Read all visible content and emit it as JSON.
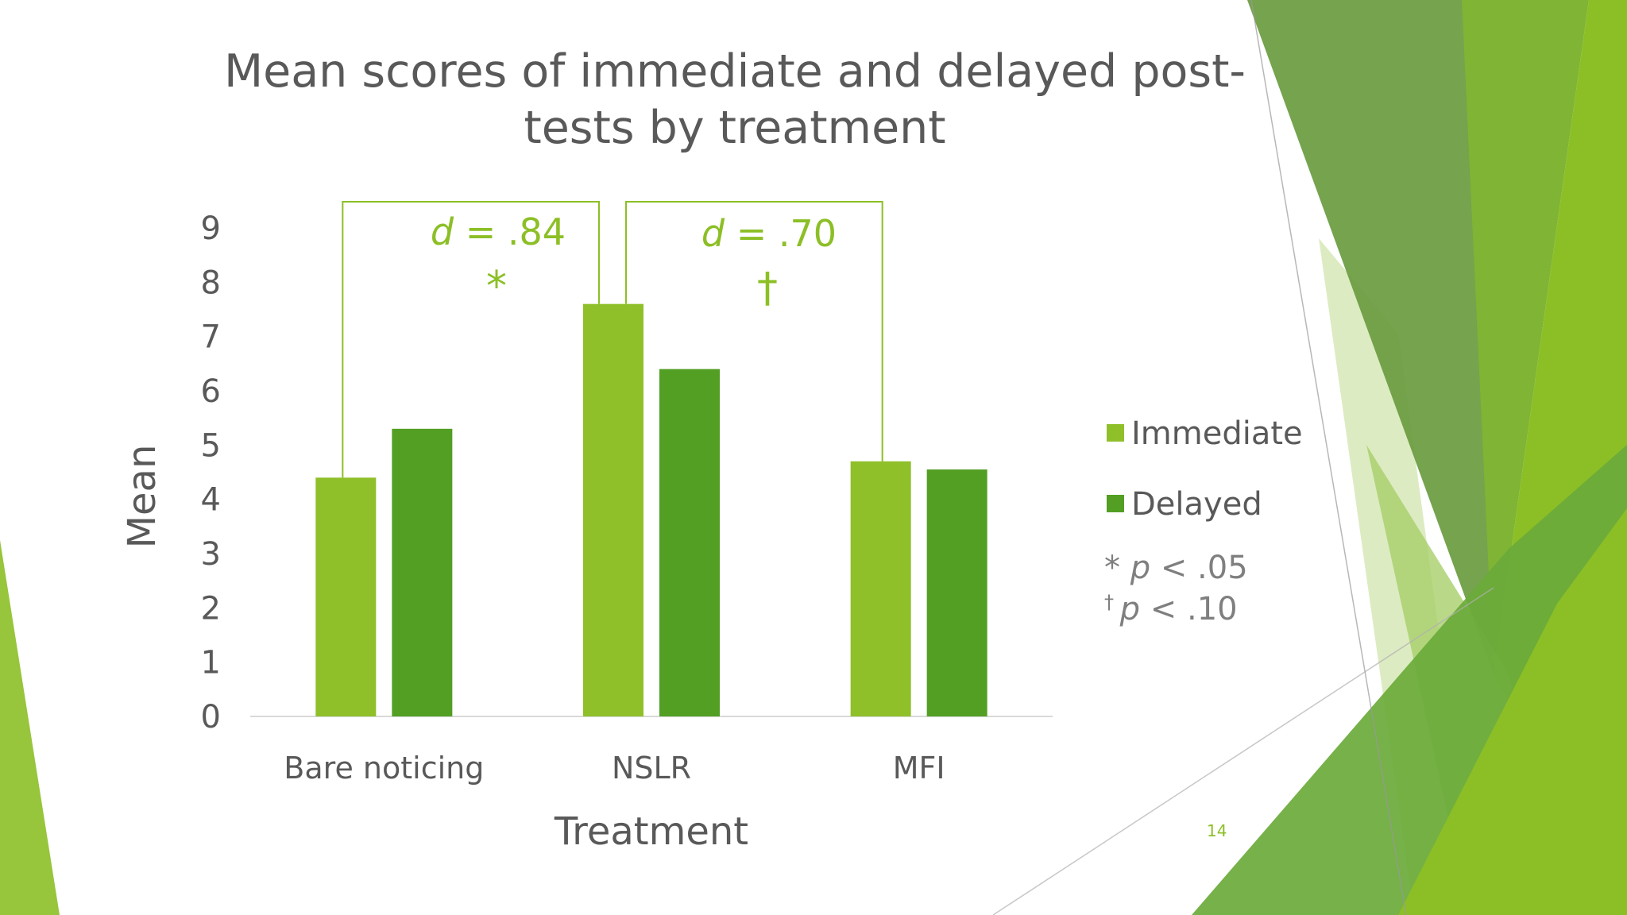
{
  "slide": {
    "title_line1": "Mean scores of immediate and delayed post-",
    "title_line2": "tests by treatment",
    "page_number": "14"
  },
  "colors": {
    "immediate": "#8fc02a",
    "delayed": "#529f24",
    "annotation": "#8cbf26",
    "text": "#595959",
    "note": "#7f7f7f"
  },
  "chart_data": {
    "type": "bar",
    "categories": [
      "Bare noticing",
      "NSLR",
      "MFI"
    ],
    "series": [
      {
        "name": "Immediate",
        "values": [
          4.4,
          7.6,
          4.7
        ]
      },
      {
        "name": "Delayed",
        "values": [
          5.3,
          6.4,
          4.55
        ]
      }
    ],
    "xlabel": "Treatment",
    "ylabel": "Mean",
    "ylim": [
      0,
      9
    ],
    "yticks": [
      0,
      1,
      2,
      3,
      4,
      5,
      6,
      7,
      8,
      9
    ],
    "grid": false,
    "legend_position": "right",
    "annotations": [
      {
        "effect_label": "d",
        "effect_value": " = .84",
        "marker": "*",
        "from_category": "Bare noticing",
        "to_category": "NSLR",
        "series": "Immediate"
      },
      {
        "effect_label": "d",
        "effect_value": " = .70",
        "marker": "†",
        "from_category": "NSLR",
        "to_category": "MFI",
        "series": "Immediate"
      }
    ],
    "significance_notes": [
      {
        "symbol": "*",
        "p_label": "p",
        "text": " < .05"
      },
      {
        "symbol": "†",
        "p_label": "p",
        "text": " < .10"
      }
    ]
  }
}
